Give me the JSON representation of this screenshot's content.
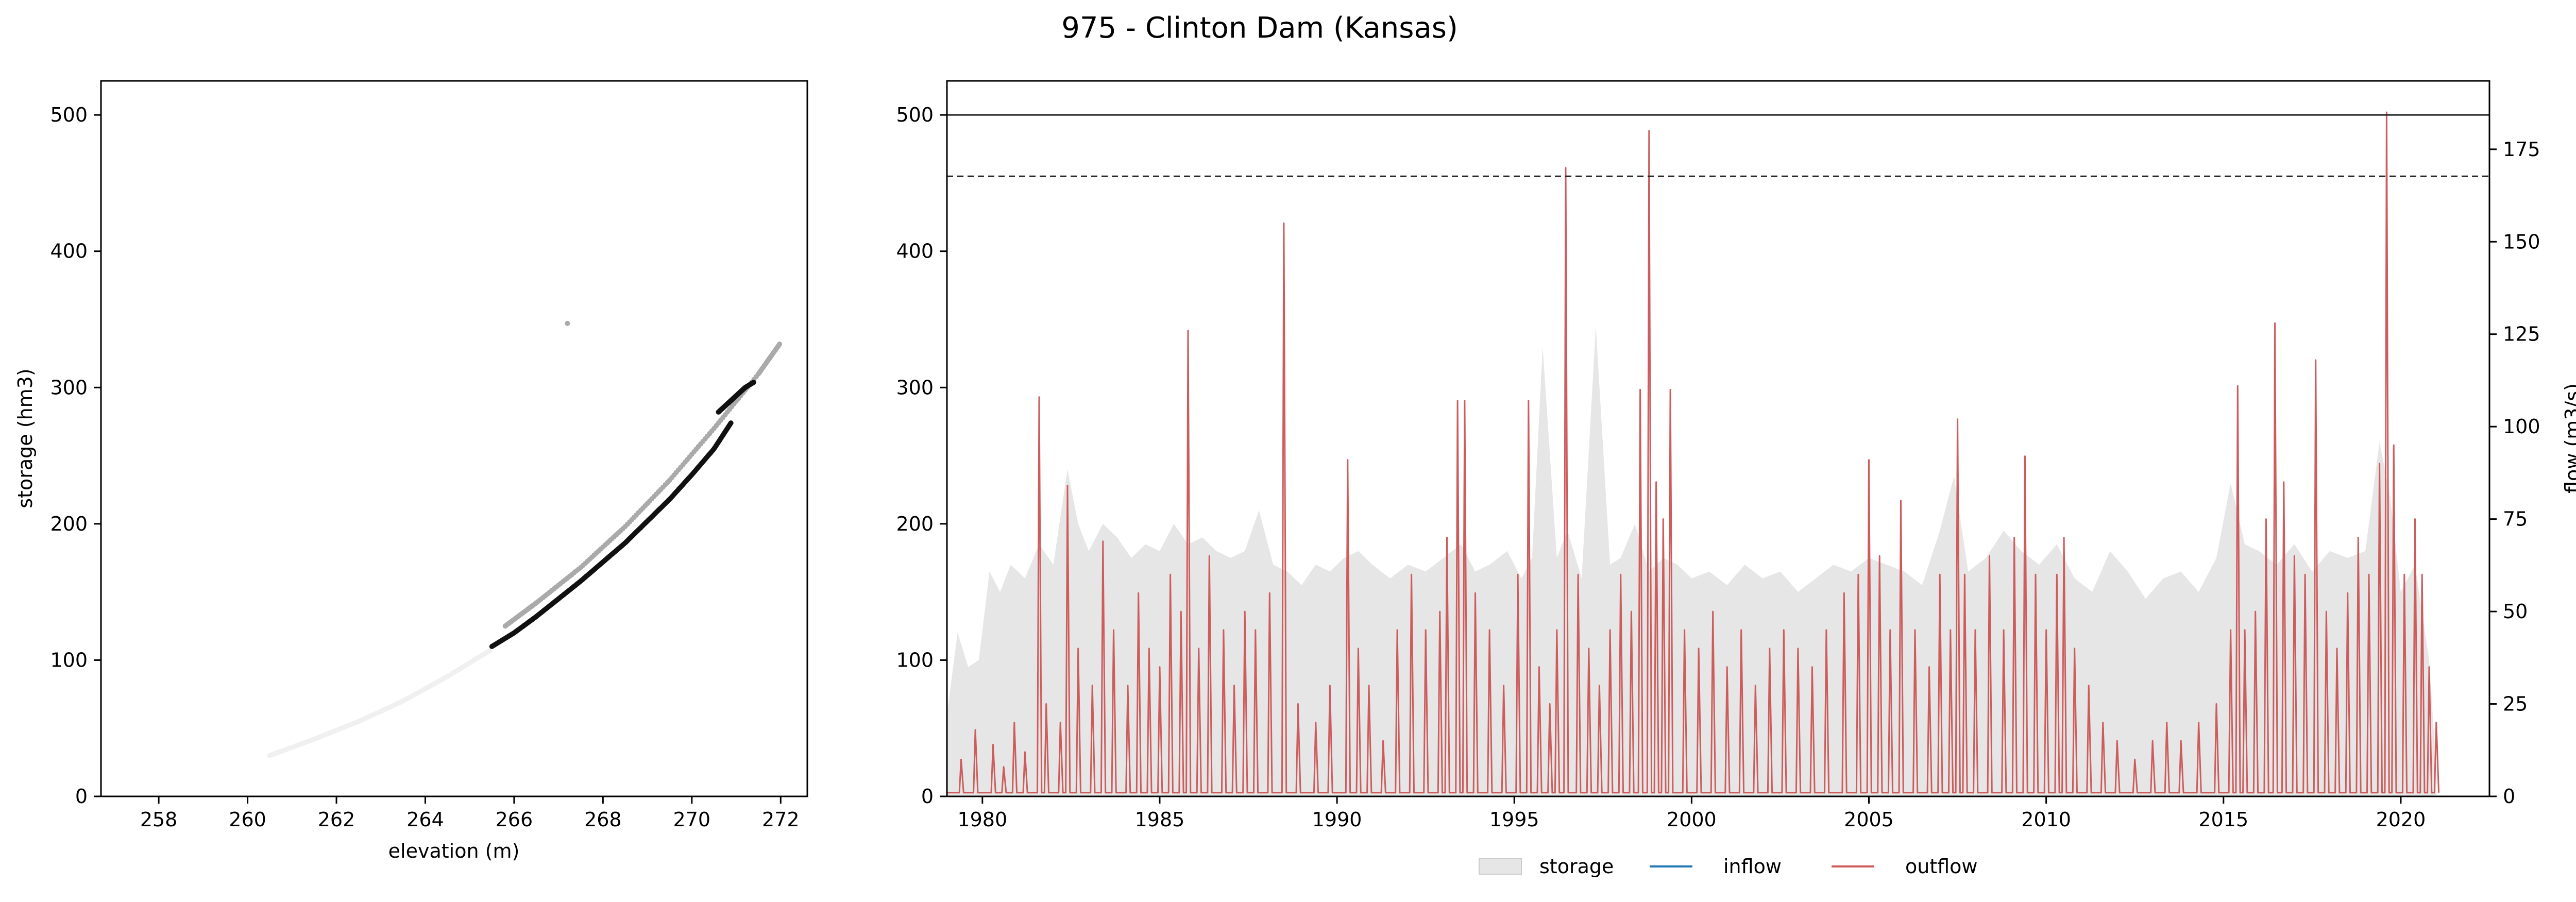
{
  "title": "975 - Clinton Dam (Kansas)",
  "chart_data": [
    {
      "type": "scatter",
      "xlabel": "elevation (m)",
      "ylabel": "storage (hm3)",
      "xlim": [
        256.7,
        272.6
      ],
      "ylim": [
        0,
        525
      ],
      "xticks": [
        258,
        260,
        262,
        264,
        266,
        268,
        270,
        272
      ],
      "yticks": [
        0,
        100,
        200,
        300,
        400,
        500
      ],
      "grid": false,
      "series": [
        {
          "color": "#f0f0f0",
          "points": [
            [
              260.5,
              30
            ],
            [
              261.5,
              42
            ],
            [
              262.5,
              55
            ],
            [
              263.5,
              70
            ],
            [
              264.5,
              88
            ],
            [
              265.5,
              108
            ]
          ]
        },
        {
          "color": "#aaaaaa",
          "points": [
            [
              265.8,
              125
            ],
            [
              266.5,
              142
            ],
            [
              267.5,
              168
            ],
            [
              268.5,
              198
            ],
            [
              269.5,
              232
            ],
            [
              270.5,
              270
            ],
            [
              271.5,
              310
            ],
            [
              272.0,
              333
            ]
          ]
        },
        {
          "color": "#111111",
          "points": [
            [
              265.5,
              110
            ],
            [
              266.0,
              120
            ],
            [
              266.5,
              132
            ],
            [
              267.0,
              145
            ],
            [
              267.5,
              158
            ],
            [
              268.0,
              172
            ],
            [
              268.5,
              186
            ],
            [
              269.0,
              202
            ],
            [
              269.5,
              218
            ],
            [
              270.0,
              236
            ],
            [
              270.5,
              255
            ],
            [
              270.9,
              275
            ]
          ]
        },
        {
          "color": "#111111",
          "points": [
            [
              270.6,
              282
            ],
            [
              270.8,
              288
            ],
            [
              271.0,
              294
            ],
            [
              271.2,
              300
            ],
            [
              271.4,
              304
            ]
          ]
        },
        {
          "color": "#aaaaaa",
          "points": [
            [
              267.2,
              347
            ]
          ]
        }
      ]
    },
    {
      "type": "area",
      "xlim": [
        1979.0,
        2022.5
      ],
      "ylim": [
        0,
        525
      ],
      "ylim_right": [
        0,
        193.5
      ],
      "ylabel_right": "flow (m3/s)",
      "xticks": [
        1980,
        1985,
        1990,
        1995,
        2000,
        2005,
        2010,
        2015,
        2020
      ],
      "yticks": [
        0,
        100,
        200,
        300,
        400,
        500
      ],
      "yticks_right": [
        0,
        25,
        50,
        75,
        100,
        125,
        150,
        175
      ],
      "reference_lines": [
        {
          "style": "solid",
          "value": 500,
          "axis": "left"
        },
        {
          "style": "dashed",
          "value": 455,
          "axis": "left"
        }
      ],
      "legend": {
        "placement": "bottom-center",
        "entries": [
          "storage",
          "inflow",
          "outflow"
        ]
      },
      "series": [
        {
          "name": "storage",
          "color": "#e6e6e6",
          "axis": "left",
          "x": [
            1979.0,
            1979.3,
            1979.6,
            1979.9,
            1980.2,
            1980.5,
            1980.8,
            1981.2,
            1981.6,
            1982.0,
            1982.4,
            1982.7,
            1983.0,
            1983.4,
            1983.8,
            1984.2,
            1984.6,
            1985.0,
            1985.4,
            1985.8,
            1986.2,
            1986.6,
            1987.0,
            1987.4,
            1987.8,
            1988.2,
            1988.6,
            1989.0,
            1989.4,
            1989.8,
            1990.2,
            1990.6,
            1991.0,
            1991.5,
            1992.0,
            1992.5,
            1993.0,
            1993.5,
            1993.9,
            1994.3,
            1994.8,
            1995.2,
            1995.5,
            1995.8,
            1996.2,
            1996.5,
            1996.9,
            1997.3,
            1997.7,
            1998.0,
            1998.4,
            1998.8,
            1999.2,
            1999.6,
            2000.0,
            2000.5,
            2001.0,
            2001.5,
            2002.0,
            2002.5,
            2003.0,
            2003.5,
            2004.0,
            2004.5,
            2005.0,
            2005.5,
            2006.0,
            2006.5,
            2007.0,
            2007.4,
            2007.8,
            2008.3,
            2008.8,
            2009.3,
            2009.8,
            2010.3,
            2010.8,
            2011.3,
            2011.8,
            2012.3,
            2012.8,
            2013.3,
            2013.8,
            2014.3,
            2014.8,
            2015.2,
            2015.6,
            2016.0,
            2016.5,
            2017.0,
            2017.5,
            2018.0,
            2018.5,
            2019.0,
            2019.4,
            2019.7,
            2020.0,
            2020.4,
            2020.8,
            2021.0
          ],
          "values": [
            60,
            120,
            95,
            100,
            165,
            150,
            170,
            160,
            185,
            170,
            240,
            200,
            180,
            200,
            190,
            175,
            185,
            180,
            200,
            185,
            190,
            180,
            175,
            180,
            210,
            170,
            165,
            155,
            170,
            165,
            175,
            180,
            170,
            160,
            170,
            165,
            175,
            185,
            165,
            170,
            180,
            160,
            175,
            330,
            175,
            195,
            160,
            345,
            170,
            175,
            200,
            165,
            175,
            170,
            160,
            165,
            155,
            170,
            160,
            165,
            150,
            160,
            170,
            165,
            175,
            170,
            165,
            155,
            195,
            235,
            165,
            175,
            195,
            180,
            170,
            185,
            160,
            150,
            180,
            165,
            145,
            160,
            165,
            150,
            175,
            230,
            185,
            180,
            170,
            185,
            165,
            180,
            175,
            180,
            260,
            220,
            150,
            170,
            100,
            20
          ]
        },
        {
          "name": "inflow",
          "color": "#1f77b4",
          "axis": "right",
          "x": [],
          "values": []
        },
        {
          "name": "outflow",
          "color": "#cd5c5c",
          "axis": "right",
          "base": 1,
          "peaks": [
            [
              1979.4,
              10
            ],
            [
              1979.8,
              18
            ],
            [
              1980.3,
              14
            ],
            [
              1980.6,
              8
            ],
            [
              1980.9,
              20
            ],
            [
              1981.2,
              12
            ],
            [
              1981.6,
              108
            ],
            [
              1981.8,
              25
            ],
            [
              1982.2,
              20
            ],
            [
              1982.4,
              84
            ],
            [
              1982.7,
              40
            ],
            [
              1983.1,
              30
            ],
            [
              1983.4,
              69
            ],
            [
              1983.7,
              45
            ],
            [
              1984.1,
              30
            ],
            [
              1984.4,
              55
            ],
            [
              1984.7,
              40
            ],
            [
              1985.0,
              35
            ],
            [
              1985.3,
              60
            ],
            [
              1985.6,
              50
            ],
            [
              1985.8,
              126
            ],
            [
              1986.1,
              40
            ],
            [
              1986.4,
              65
            ],
            [
              1986.8,
              45
            ],
            [
              1987.1,
              30
            ],
            [
              1987.4,
              50
            ],
            [
              1987.7,
              45
            ],
            [
              1988.1,
              55
            ],
            [
              1988.5,
              155
            ],
            [
              1988.9,
              25
            ],
            [
              1989.4,
              20
            ],
            [
              1989.8,
              30
            ],
            [
              1990.3,
              91
            ],
            [
              1990.6,
              40
            ],
            [
              1990.9,
              30
            ],
            [
              1991.3,
              15
            ],
            [
              1991.7,
              45
            ],
            [
              1992.1,
              60
            ],
            [
              1992.5,
              45
            ],
            [
              1992.9,
              50
            ],
            [
              1993.1,
              70
            ],
            [
              1993.4,
              107
            ],
            [
              1993.6,
              107
            ],
            [
              1993.9,
              55
            ],
            [
              1994.3,
              45
            ],
            [
              1994.7,
              30
            ],
            [
              1995.1,
              60
            ],
            [
              1995.4,
              107
            ],
            [
              1995.7,
              35
            ],
            [
              1996.0,
              25
            ],
            [
              1996.2,
              45
            ],
            [
              1996.45,
              170
            ],
            [
              1996.8,
              60
            ],
            [
              1997.1,
              40
            ],
            [
              1997.4,
              30
            ],
            [
              1997.7,
              45
            ],
            [
              1998.0,
              60
            ],
            [
              1998.3,
              50
            ],
            [
              1998.55,
              110
            ],
            [
              1998.8,
              180
            ],
            [
              1999.0,
              85
            ],
            [
              1999.2,
              75
            ],
            [
              1999.4,
              110
            ],
            [
              1999.8,
              45
            ],
            [
              2000.2,
              40
            ],
            [
              2000.6,
              50
            ],
            [
              2001.0,
              35
            ],
            [
              2001.4,
              45
            ],
            [
              2001.8,
              30
            ],
            [
              2002.2,
              40
            ],
            [
              2002.6,
              45
            ],
            [
              2003.0,
              40
            ],
            [
              2003.4,
              35
            ],
            [
              2003.8,
              45
            ],
            [
              2004.3,
              55
            ],
            [
              2004.7,
              60
            ],
            [
              2005.0,
              91
            ],
            [
              2005.3,
              65
            ],
            [
              2005.6,
              45
            ],
            [
              2005.9,
              80
            ],
            [
              2006.3,
              45
            ],
            [
              2006.7,
              35
            ],
            [
              2007.0,
              60
            ],
            [
              2007.3,
              45
            ],
            [
              2007.5,
              102
            ],
            [
              2007.7,
              60
            ],
            [
              2008.0,
              45
            ],
            [
              2008.4,
              65
            ],
            [
              2008.8,
              45
            ],
            [
              2009.1,
              70
            ],
            [
              2009.4,
              92
            ],
            [
              2009.7,
              60
            ],
            [
              2010.0,
              45
            ],
            [
              2010.3,
              60
            ],
            [
              2010.5,
              70
            ],
            [
              2010.8,
              40
            ],
            [
              2011.2,
              30
            ],
            [
              2011.6,
              20
            ],
            [
              2012.0,
              15
            ],
            [
              2012.5,
              10
            ],
            [
              2013.0,
              15
            ],
            [
              2013.4,
              20
            ],
            [
              2013.8,
              15
            ],
            [
              2014.3,
              20
            ],
            [
              2014.8,
              25
            ],
            [
              2015.2,
              45
            ],
            [
              2015.4,
              111
            ],
            [
              2015.6,
              45
            ],
            [
              2015.9,
              50
            ],
            [
              2016.2,
              75
            ],
            [
              2016.45,
              128
            ],
            [
              2016.7,
              85
            ],
            [
              2017.0,
              65
            ],
            [
              2017.3,
              60
            ],
            [
              2017.6,
              118
            ],
            [
              2017.9,
              50
            ],
            [
              2018.2,
              40
            ],
            [
              2018.5,
              55
            ],
            [
              2018.8,
              70
            ],
            [
              2019.1,
              60
            ],
            [
              2019.4,
              90
            ],
            [
              2019.6,
              185
            ],
            [
              2019.8,
              95
            ],
            [
              2020.1,
              60
            ],
            [
              2020.4,
              75
            ],
            [
              2020.6,
              60
            ],
            [
              2020.8,
              35
            ],
            [
              2021.0,
              20
            ]
          ]
        }
      ]
    }
  ]
}
